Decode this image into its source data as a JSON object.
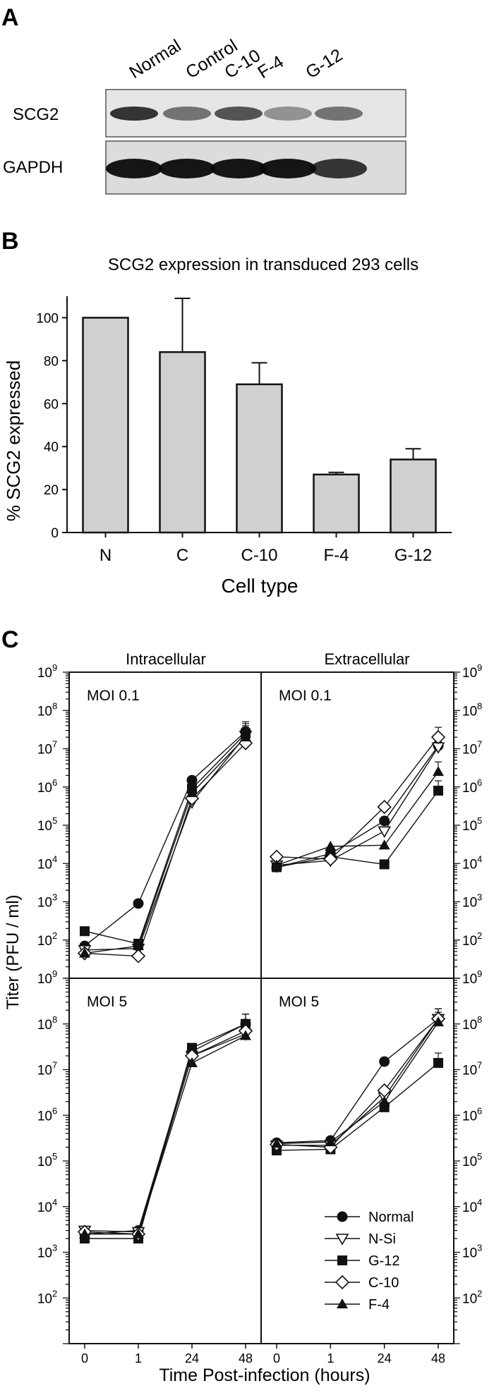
{
  "panel_a": {
    "letter": "A",
    "lane_labels": [
      "Normal",
      "Control",
      "C-10",
      "F-4",
      "G-12"
    ],
    "row_labels": [
      "SCG2",
      "GAPDH"
    ],
    "band_intensity": {
      "SCG2": [
        0.85,
        0.55,
        0.7,
        0.4,
        0.55
      ],
      "GAPDH": [
        0.95,
        0.95,
        0.95,
        0.95,
        0.8
      ]
    }
  },
  "panel_b": {
    "letter": "B"
  },
  "panel_c": {
    "letter": "C",
    "titles": [
      "Intracellular",
      "Extracellular"
    ],
    "moi_labels": [
      "MOI 0.1",
      "MOI 5"
    ],
    "ylabel": "Titer (PFU / ml)",
    "xlabel": "Time Post-infection (hours)",
    "xticks": [
      "0",
      "1",
      "24",
      "48"
    ],
    "yexp_labels": [
      "2",
      "3",
      "4",
      "5",
      "6",
      "7",
      "8",
      "9"
    ],
    "legend": [
      "Normal",
      "N-Si",
      "G-12",
      "C-10",
      "F-4"
    ],
    "legend_markers": [
      "filled-circle",
      "open-triangle-down",
      "filled-square",
      "open-diamond",
      "filled-triangle-up"
    ]
  },
  "chart_data": [
    {
      "type": "bar",
      "title": "SCG2 expression in transduced 293 cells",
      "xlabel": "Cell type",
      "ylabel": "% SCG2 expressed",
      "categories": [
        "N",
        "C",
        "C-10",
        "F-4",
        "G-12"
      ],
      "values": [
        100,
        84,
        69,
        27,
        34
      ],
      "error_plus": [
        0,
        25,
        10,
        1,
        5
      ],
      "ylim": [
        0,
        110
      ],
      "yticks": [
        0,
        20,
        40,
        60,
        80,
        100
      ],
      "grid": false
    },
    {
      "type": "line",
      "title": "Intracellular",
      "annotation": "MOI 0.1",
      "x": [
        "0",
        "1",
        "24",
        "48"
      ],
      "yscale": "log",
      "ylim": [
        10,
        1000000000
      ],
      "series": [
        {
          "name": "Normal",
          "values": [
            70,
            900,
            1500000,
            28000000
          ]
        },
        {
          "name": "N-Si",
          "values": [
            55,
            60,
            400000,
            22000000
          ]
        },
        {
          "name": "G-12",
          "values": [
            170,
            80,
            900000,
            25000000
          ]
        },
        {
          "name": "C-10",
          "values": [
            45,
            38,
            500000,
            14000000
          ]
        },
        {
          "name": "F-4",
          "values": [
            45,
            70,
            700000,
            20000000
          ]
        }
      ]
    },
    {
      "type": "line",
      "title": "Extracellular",
      "annotation": "MOI 0.1",
      "x": [
        "0",
        "1",
        "24",
        "48"
      ],
      "yscale": "log",
      "ylim": [
        10,
        1000000000
      ],
      "series": [
        {
          "name": "Normal",
          "values": [
            8000,
            18000,
            130000,
            12000000
          ]
        },
        {
          "name": "N-Si",
          "values": [
            9000,
            12000,
            70000,
            11000000
          ]
        },
        {
          "name": "G-12",
          "values": [
            8000,
            15000,
            9500,
            800000
          ]
        },
        {
          "name": "C-10",
          "values": [
            15000,
            13000,
            300000,
            20000000
          ]
        },
        {
          "name": "F-4",
          "values": [
            9000,
            28000,
            30000,
            2500000
          ]
        }
      ]
    },
    {
      "type": "line",
      "annotation": "MOI 5",
      "x": [
        "0",
        "1",
        "24",
        "48"
      ],
      "yscale": "log",
      "ylim": [
        10,
        1000000000
      ],
      "series": [
        {
          "name": "Normal",
          "values": [
            2500,
            3000,
            25000000,
            100000000
          ]
        },
        {
          "name": "N-Si",
          "values": [
            3000,
            2800,
            20000000,
            60000000
          ]
        },
        {
          "name": "G-12",
          "values": [
            2000,
            2000,
            30000000,
            100000000
          ]
        },
        {
          "name": "C-10",
          "values": [
            2800,
            2500,
            20000000,
            70000000
          ]
        },
        {
          "name": "F-4",
          "values": [
            2500,
            2500,
            14000000,
            55000000
          ]
        }
      ]
    },
    {
      "type": "line",
      "annotation": "MOI 5",
      "x": [
        "0",
        "1",
        "24",
        "48"
      ],
      "yscale": "log",
      "ylim": [
        10,
        1000000000
      ],
      "series": [
        {
          "name": "Normal",
          "values": [
            250000,
            280000,
            15000000,
            130000000
          ]
        },
        {
          "name": "N-Si",
          "values": [
            220000,
            220000,
            2500000,
            130000000
          ]
        },
        {
          "name": "G-12",
          "values": [
            170000,
            180000,
            1500000,
            14000000
          ]
        },
        {
          "name": "C-10",
          "values": [
            230000,
            200000,
            3500000,
            130000000
          ]
        },
        {
          "name": "F-4",
          "values": [
            240000,
            260000,
            2000000,
            110000000
          ]
        }
      ]
    }
  ]
}
